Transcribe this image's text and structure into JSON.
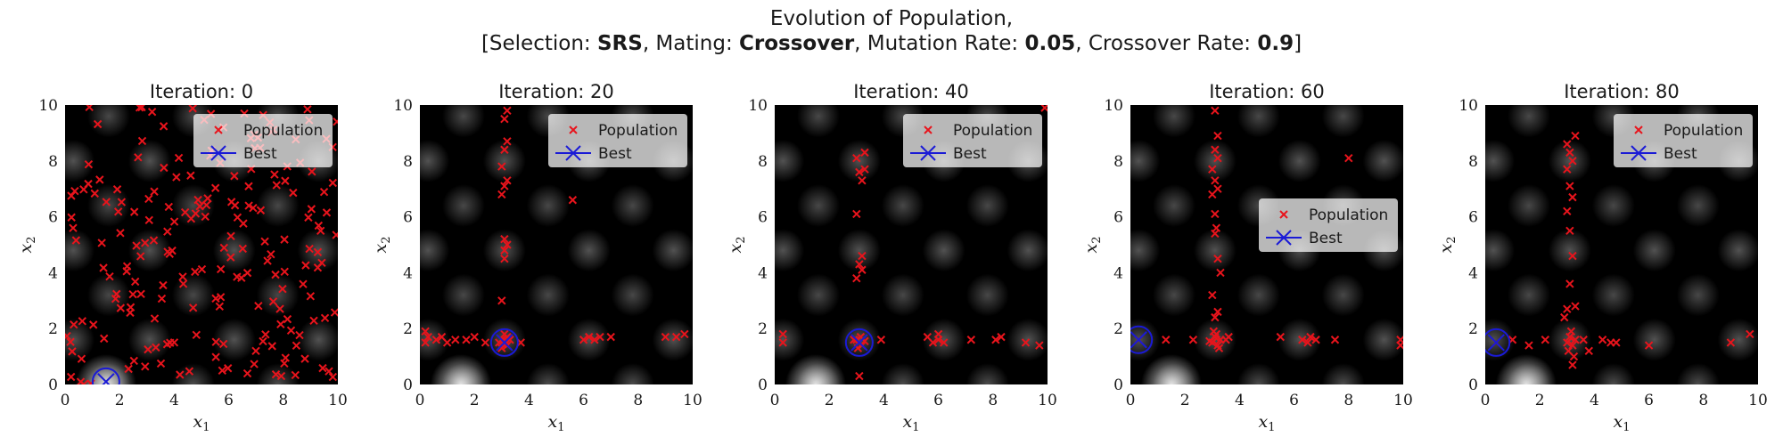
{
  "figure": {
    "title_line1": "Evolution of Population,",
    "title_parts": [
      {
        "text": "[Selection: ",
        "bold": false
      },
      {
        "text": "SRS",
        "bold": true
      },
      {
        "text": ", Mating: ",
        "bold": false
      },
      {
        "text": "Crossover",
        "bold": true
      },
      {
        "text": ", Mutation Rate: ",
        "bold": false
      },
      {
        "text": "0.05",
        "bold": true
      },
      {
        "text": ", Crossover Rate: ",
        "bold": false
      },
      {
        "text": "0.9",
        "bold": true
      },
      {
        "text": "]",
        "bold": false
      }
    ]
  },
  "colors": {
    "population": "#e8141c",
    "best": "#1a1ad6",
    "background": "#000000"
  },
  "chart_data": [
    {
      "type": "scatter",
      "title": "Iteration:  0",
      "xlabel": "x",
      "xlabel_sub": "1",
      "ylabel": "x",
      "ylabel_sub": "2",
      "xlim": [
        0,
        10
      ],
      "ylim": [
        0,
        10
      ],
      "xticks": [
        "0",
        "2",
        "4",
        "6",
        "8",
        "10"
      ],
      "yticks": [
        "0",
        "2",
        "4",
        "6",
        "8",
        "10"
      ],
      "legend": {
        "placement": "top-right",
        "entries": [
          "Population",
          "Best"
        ]
      },
      "best": {
        "x": 1.5,
        "y": 0.1
      },
      "population_seed": 11,
      "population_count": 200
    },
    {
      "type": "scatter",
      "title": "Iteration:  20",
      "xlabel": "x",
      "xlabel_sub": "1",
      "ylabel": "x",
      "ylabel_sub": "2",
      "xlim": [
        0,
        10
      ],
      "ylim": [
        0,
        10
      ],
      "xticks": [
        "0",
        "2",
        "4",
        "6",
        "8",
        "10"
      ],
      "yticks": [
        "0",
        "2",
        "4",
        "6",
        "8",
        "10"
      ],
      "legend": {
        "placement": "top-right",
        "entries": [
          "Population",
          "Best"
        ]
      },
      "best": {
        "x": 3.1,
        "y": 1.5
      },
      "population": [
        [
          3.1,
          1.5
        ],
        [
          3.0,
          1.6
        ],
        [
          3.2,
          1.4
        ],
        [
          3.15,
          1.55
        ],
        [
          3.05,
          1.45
        ],
        [
          3.2,
          1.7
        ],
        [
          3.0,
          1.3
        ],
        [
          2.9,
          1.5
        ],
        [
          3.3,
          1.6
        ],
        [
          3.1,
          1.8
        ],
        [
          0.2,
          1.5
        ],
        [
          0.3,
          1.7
        ],
        [
          0.2,
          1.9
        ],
        [
          0.6,
          1.6
        ],
        [
          0.8,
          1.7
        ],
        [
          1.0,
          1.5
        ],
        [
          1.3,
          1.6
        ],
        [
          1.7,
          1.6
        ],
        [
          2.0,
          1.7
        ],
        [
          2.4,
          1.5
        ],
        [
          3.7,
          1.5
        ],
        [
          6.0,
          1.6
        ],
        [
          6.2,
          1.7
        ],
        [
          6.4,
          1.6
        ],
        [
          6.6,
          1.7
        ],
        [
          7.0,
          1.7
        ],
        [
          9.0,
          1.7
        ],
        [
          9.4,
          1.7
        ],
        [
          9.7,
          1.8
        ],
        [
          3.0,
          3.0
        ],
        [
          3.1,
          4.5
        ],
        [
          3.1,
          4.8
        ],
        [
          3.2,
          5.0
        ],
        [
          3.1,
          5.2
        ],
        [
          3.0,
          6.8
        ],
        [
          3.1,
          7.1
        ],
        [
          3.2,
          7.3
        ],
        [
          3.1,
          8.4
        ],
        [
          3.2,
          8.7
        ],
        [
          3.1,
          9.5
        ],
        [
          3.2,
          9.8
        ],
        [
          3.0,
          7.8
        ],
        [
          5.6,
          6.6
        ]
      ]
    },
    {
      "type": "scatter",
      "title": "Iteration:  40",
      "xlabel": "x",
      "xlabel_sub": "1",
      "ylabel": "x",
      "ylabel_sub": "2",
      "xlim": [
        0,
        10
      ],
      "ylim": [
        0,
        10
      ],
      "xticks": [
        "0",
        "2",
        "4",
        "6",
        "8",
        "10"
      ],
      "yticks": [
        "0",
        "2",
        "4",
        "6",
        "8",
        "10"
      ],
      "legend": {
        "placement": "top-right",
        "entries": [
          "Population",
          "Best"
        ]
      },
      "best": {
        "x": 3.1,
        "y": 1.5
      },
      "population": [
        [
          3.1,
          1.5
        ],
        [
          3.0,
          1.6
        ],
        [
          3.2,
          1.4
        ],
        [
          3.15,
          1.7
        ],
        [
          3.05,
          1.3
        ],
        [
          3.3,
          1.55
        ],
        [
          2.9,
          1.6
        ],
        [
          0.3,
          1.5
        ],
        [
          0.3,
          1.8
        ],
        [
          3.1,
          0.3
        ],
        [
          3.9,
          1.6
        ],
        [
          5.6,
          1.7
        ],
        [
          5.8,
          1.5
        ],
        [
          6.0,
          1.6
        ],
        [
          6.2,
          1.5
        ],
        [
          6.0,
          1.8
        ],
        [
          7.2,
          1.6
        ],
        [
          8.1,
          1.6
        ],
        [
          8.3,
          1.7
        ],
        [
          9.2,
          1.5
        ],
        [
          9.7,
          1.4
        ],
        [
          3.0,
          3.8
        ],
        [
          3.2,
          4.1
        ],
        [
          3.1,
          4.3
        ],
        [
          3.2,
          4.6
        ],
        [
          3.0,
          6.1
        ],
        [
          3.2,
          7.3
        ],
        [
          3.1,
          7.6
        ],
        [
          3.3,
          7.7
        ],
        [
          3.0,
          8.1
        ],
        [
          3.3,
          8.3
        ],
        [
          9.9,
          9.9
        ]
      ]
    },
    {
      "type": "scatter",
      "title": "Iteration:  60",
      "xlabel": "x",
      "xlabel_sub": "1",
      "ylabel": "x",
      "ylabel_sub": "2",
      "xlim": [
        0,
        10
      ],
      "ylim": [
        0,
        10
      ],
      "xticks": [
        "0",
        "2",
        "4",
        "6",
        "8",
        "10"
      ],
      "yticks": [
        "0",
        "2",
        "4",
        "6",
        "8",
        "10"
      ],
      "legend": {
        "placement": "center-right",
        "entries": [
          "Population",
          "Best"
        ]
      },
      "best": {
        "x": 0.3,
        "y": 1.6
      },
      "population": [
        [
          0.3,
          1.6
        ],
        [
          1.3,
          1.6
        ],
        [
          2.3,
          1.6
        ],
        [
          3.0,
          1.5
        ],
        [
          3.1,
          1.7
        ],
        [
          3.2,
          1.4
        ],
        [
          3.15,
          1.8
        ],
        [
          3.3,
          1.6
        ],
        [
          2.9,
          1.55
        ],
        [
          3.05,
          1.9
        ],
        [
          3.25,
          1.3
        ],
        [
          3.5,
          1.6
        ],
        [
          3.6,
          1.7
        ],
        [
          5.5,
          1.7
        ],
        [
          6.3,
          1.6
        ],
        [
          6.5,
          1.5
        ],
        [
          6.8,
          1.6
        ],
        [
          6.6,
          1.7
        ],
        [
          7.5,
          1.6
        ],
        [
          9.9,
          1.6
        ],
        [
          9.9,
          1.4
        ],
        [
          3.1,
          2.4
        ],
        [
          3.2,
          2.6
        ],
        [
          3.0,
          3.2
        ],
        [
          3.3,
          4.0
        ],
        [
          3.2,
          4.5
        ],
        [
          3.1,
          5.4
        ],
        [
          3.15,
          5.6
        ],
        [
          3.1,
          6.1
        ],
        [
          3.0,
          6.8
        ],
        [
          3.2,
          7.0
        ],
        [
          3.1,
          7.3
        ],
        [
          3.0,
          7.7
        ],
        [
          3.2,
          8.1
        ],
        [
          3.1,
          8.4
        ],
        [
          3.2,
          8.9
        ],
        [
          3.1,
          9.8
        ],
        [
          8.0,
          8.1
        ]
      ]
    },
    {
      "type": "scatter",
      "title": "Iteration:  80",
      "xlabel": "x",
      "xlabel_sub": "1",
      "ylabel": "x",
      "ylabel_sub": "2",
      "xlim": [
        0,
        10
      ],
      "ylim": [
        0,
        10
      ],
      "xticks": [
        "0",
        "2",
        "4",
        "6",
        "8",
        "10"
      ],
      "yticks": [
        "0",
        "2",
        "4",
        "6",
        "8",
        "10"
      ],
      "legend": {
        "placement": "top-right",
        "entries": [
          "Population",
          "Best"
        ]
      },
      "best": {
        "x": 0.4,
        "y": 1.5
      },
      "population": [
        [
          0.4,
          1.5
        ],
        [
          1.0,
          1.6
        ],
        [
          1.6,
          1.4
        ],
        [
          2.2,
          1.6
        ],
        [
          3.0,
          1.5
        ],
        [
          3.1,
          1.7
        ],
        [
          3.2,
          1.4
        ],
        [
          3.3,
          1.6
        ],
        [
          3.15,
          1.9
        ],
        [
          3.05,
          1.2
        ],
        [
          3.25,
          1.0
        ],
        [
          3.2,
          0.7
        ],
        [
          3.6,
          1.6
        ],
        [
          3.8,
          1.2
        ],
        [
          4.3,
          1.6
        ],
        [
          4.6,
          1.5
        ],
        [
          4.8,
          1.5
        ],
        [
          6.0,
          1.4
        ],
        [
          9.0,
          1.5
        ],
        [
          9.7,
          1.8
        ],
        [
          2.9,
          2.4
        ],
        [
          3.0,
          2.7
        ],
        [
          3.3,
          2.8
        ],
        [
          3.1,
          3.6
        ],
        [
          3.2,
          4.6
        ],
        [
          3.1,
          5.5
        ],
        [
          3.0,
          6.2
        ],
        [
          3.2,
          6.7
        ],
        [
          3.1,
          7.1
        ],
        [
          3.0,
          7.7
        ],
        [
          3.2,
          8.0
        ],
        [
          3.1,
          8.3
        ],
        [
          3.0,
          8.6
        ],
        [
          3.3,
          8.9
        ]
      ]
    }
  ]
}
